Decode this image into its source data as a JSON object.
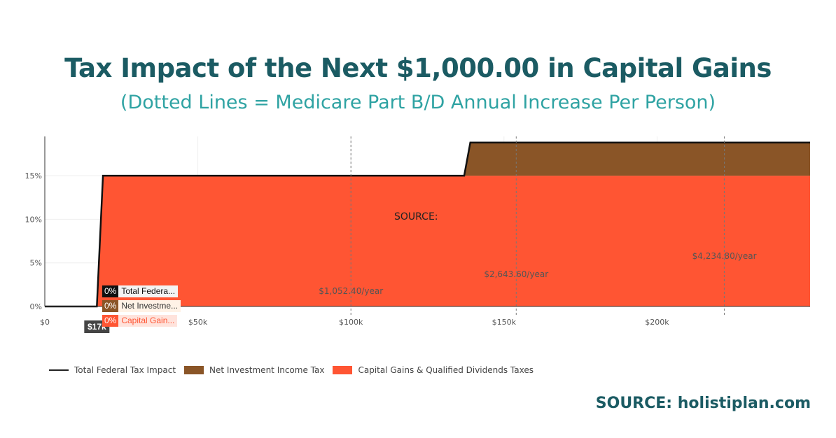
{
  "title": "Tax Impact of the Next $1,000.00 in Capital Gains",
  "subtitle": "(Dotted Lines = Medicare Part B/D Annual Increase Per Person)",
  "source_mid": "SOURCE:",
  "source_bottom": "SOURCE: holistiplan.com",
  "hover_x_label": "$17k",
  "tooltips": [
    {
      "value": "0%",
      "label": "Total Federa...",
      "color": "#111111"
    },
    {
      "value": "0%",
      "label": "Net Investme...",
      "color": "#8a5527"
    },
    {
      "value": "0%",
      "label": "Capital Gain...",
      "color": "#ff5533"
    }
  ],
  "legend": [
    {
      "label": "Total Federal Tax Impact",
      "kind": "line",
      "color": "#222222"
    },
    {
      "label": "Net Investment Income Tax",
      "kind": "box",
      "color": "#8a5527"
    },
    {
      "label": "Capital Gains & Qualified Dividends Taxes",
      "kind": "box",
      "color": "#ff5533"
    }
  ],
  "chart_data": {
    "type": "area",
    "xlim": [
      0,
      250000
    ],
    "ylim": [
      0,
      19.5
    ],
    "x_ticks": [
      {
        "value": 0,
        "label": "$0"
      },
      {
        "value": 50000,
        "label": "$50k"
      },
      {
        "value": 100000,
        "label": "$100k"
      },
      {
        "value": 150000,
        "label": "$150k"
      },
      {
        "value": 200000,
        "label": "$200k"
      }
    ],
    "y_ticks": [
      {
        "value": 0,
        "label": "0%"
      },
      {
        "value": 5,
        "label": "5%"
      },
      {
        "value": 10,
        "label": "10%"
      },
      {
        "value": 15,
        "label": "15%"
      }
    ],
    "series": [
      {
        "name": "Capital Gains & Qualified Dividends Taxes",
        "color": "#ff5533",
        "x": [
          0,
          17000,
          19000,
          250000
        ],
        "y": [
          0,
          0,
          15,
          15
        ]
      },
      {
        "name": "Net Investment Income Tax",
        "color": "#8a5527",
        "x": [
          0,
          137000,
          139000,
          250000
        ],
        "y": [
          0,
          0,
          3.8,
          3.8
        ]
      },
      {
        "name": "Total Federal Tax Impact",
        "color": "#111111",
        "x": [
          0,
          17000,
          19000,
          137000,
          139000,
          250000
        ],
        "y": [
          0,
          0,
          15,
          15,
          18.8,
          18.8
        ]
      }
    ],
    "medicare_lines": [
      {
        "x": 100000,
        "label": "$1,052.40/year"
      },
      {
        "x": 154000,
        "label": "$2,643.60/year"
      },
      {
        "x": 222000,
        "label": "$4,234.80/year"
      }
    ]
  }
}
